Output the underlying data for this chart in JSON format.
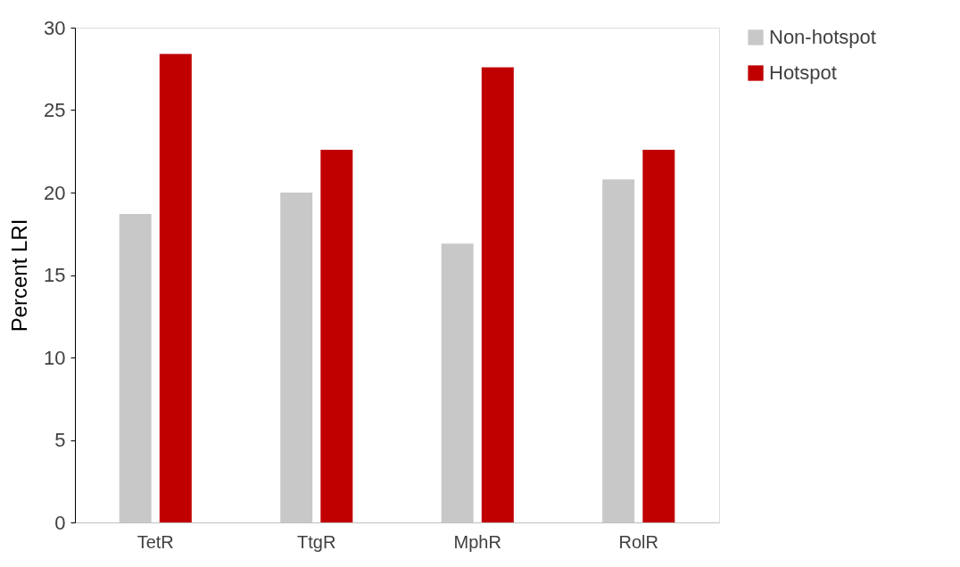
{
  "chart_data": {
    "type": "bar",
    "ylabel": "Percent LRI",
    "categories": [
      "TetR",
      "TtgR",
      "MphR",
      "RolR"
    ],
    "series": [
      {
        "name": "Non-hotspot",
        "color": "#c8c8c8",
        "values": [
          18.7,
          20.0,
          16.9,
          20.8
        ]
      },
      {
        "name": "Hotspot",
        "color": "#c00000",
        "values": [
          28.4,
          22.6,
          27.6,
          22.6
        ]
      }
    ],
    "ylim": [
      0,
      30
    ],
    "yticks": [
      0,
      5,
      10,
      15,
      20,
      25,
      30
    ],
    "grid": false,
    "legend": "right"
  }
}
